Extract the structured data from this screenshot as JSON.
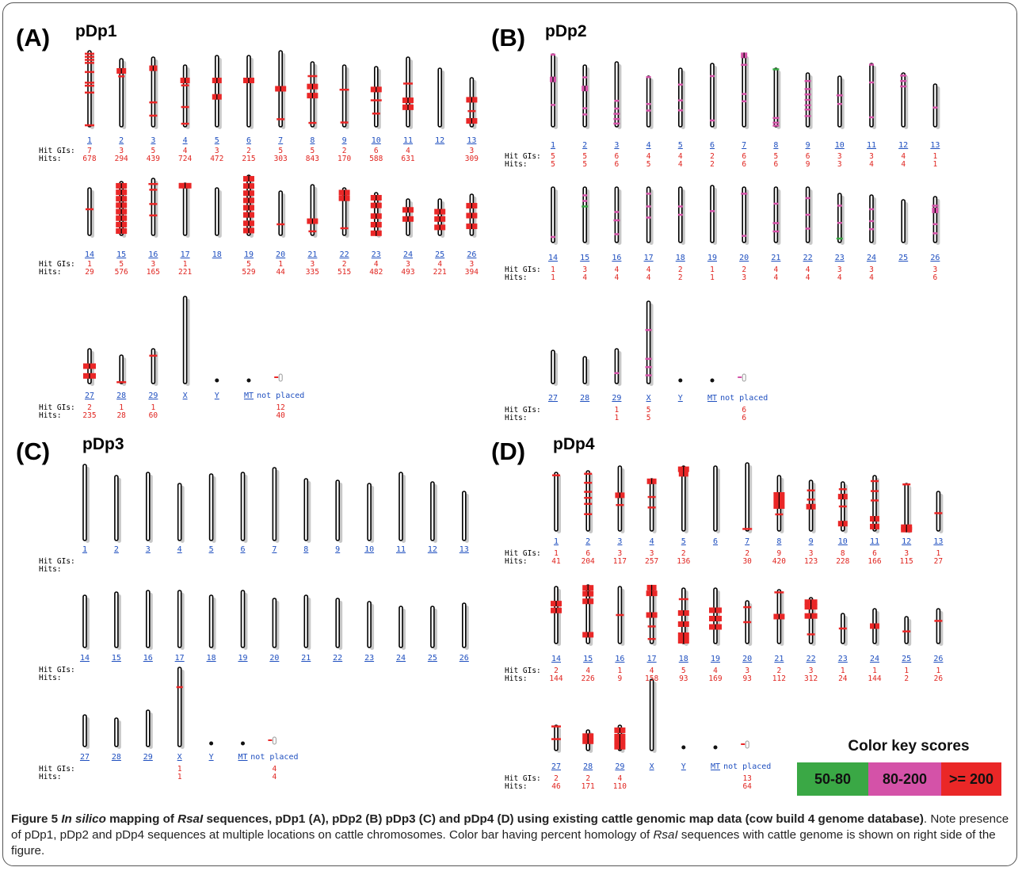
{
  "rows_header": {
    "hit_gis": "Hit GIs:",
    "hits": "Hits:"
  },
  "panels": [
    {
      "label": "(A)",
      "name": "pDp1",
      "mark_color": "#e8211c",
      "rows": [
        {
          "chromosomes": [
            "1",
            "2",
            "3",
            "4",
            "5",
            "6",
            "7",
            "8",
            "9",
            "10",
            "11",
            "12",
            "13"
          ],
          "hit_gis": [
            "7",
            "3",
            "5",
            "4",
            "3",
            "2",
            "5",
            "5",
            "2",
            "6",
            "4",
            "",
            "3"
          ],
          "hits": [
            "678",
            "294",
            "439",
            "724",
            "472",
            "215",
            "303",
            "843",
            "170",
            "588",
            "631",
            "",
            "309"
          ]
        },
        {
          "chromosomes": [
            "14",
            "15",
            "16",
            "17",
            "18",
            "19",
            "20",
            "21",
            "22",
            "23",
            "24",
            "25",
            "26"
          ],
          "hit_gis": [
            "1",
            "5",
            "3",
            "1",
            "",
            "5",
            "1",
            "3",
            "2",
            "4",
            "3",
            "4",
            "3"
          ],
          "hits": [
            "29",
            "576",
            "165",
            "221",
            "",
            "529",
            "44",
            "335",
            "515",
            "482",
            "493",
            "221",
            "394"
          ]
        },
        {
          "chromosomes": [
            "27",
            "28",
            "29",
            "X",
            "Y",
            "MT",
            "not placed"
          ],
          "hit_gis": [
            "2",
            "1",
            "1",
            "",
            "",
            "",
            "12"
          ],
          "hits": [
            "235",
            "28",
            "60",
            "",
            "",
            "",
            "40"
          ]
        }
      ]
    },
    {
      "label": "(B)",
      "name": "pDp2",
      "mark_color": "#c050b8",
      "rows": [
        {
          "chromosomes": [
            "1",
            "2",
            "3",
            "4",
            "5",
            "6",
            "7",
            "8",
            "9",
            "10",
            "11",
            "12",
            "13"
          ],
          "hit_gis": [
            "5",
            "5",
            "6",
            "4",
            "4",
            "2",
            "6",
            "5",
            "6",
            "3",
            "3",
            "4",
            "1"
          ],
          "hits": [
            "5",
            "5",
            "6",
            "5",
            "4",
            "2",
            "6",
            "6",
            "9",
            "3",
            "4",
            "4",
            "1"
          ]
        },
        {
          "chromosomes": [
            "14",
            "15",
            "16",
            "17",
            "18",
            "19",
            "20",
            "21",
            "22",
            "23",
            "24",
            "25",
            "26"
          ],
          "hit_gis": [
            "1",
            "3",
            "4",
            "4",
            "2",
            "1",
            "2",
            "4",
            "4",
            "3",
            "3",
            "",
            "3"
          ],
          "hits": [
            "1",
            "4",
            "4",
            "4",
            "2",
            "1",
            "3",
            "4",
            "4",
            "4",
            "4",
            "",
            "6"
          ]
        },
        {
          "chromosomes": [
            "27",
            "28",
            "29",
            "X",
            "Y",
            "MT",
            "not placed"
          ],
          "hit_gis": [
            "",
            "",
            "1",
            "5",
            "",
            "",
            "6"
          ],
          "hits": [
            "",
            "",
            "1",
            "5",
            "",
            "",
            "6"
          ]
        }
      ]
    },
    {
      "label": "(C)",
      "name": "pDp3",
      "mark_color": "#e8211c",
      "rows": [
        {
          "chromosomes": [
            "1",
            "2",
            "3",
            "4",
            "5",
            "6",
            "7",
            "8",
            "9",
            "10",
            "11",
            "12",
            "13"
          ],
          "hit_gis": [
            "",
            "",
            "",
            "",
            "",
            "",
            "",
            "",
            "",
            "",
            "",
            "",
            ""
          ],
          "hits": [
            "",
            "",
            "",
            "",
            "",
            "",
            "",
            "",
            "",
            "",
            "",
            "",
            ""
          ]
        },
        {
          "chromosomes": [
            "14",
            "15",
            "16",
            "17",
            "18",
            "19",
            "20",
            "21",
            "22",
            "23",
            "24",
            "25",
            "26"
          ],
          "hit_gis": [
            "",
            "",
            "",
            "",
            "",
            "",
            "",
            "",
            "",
            "",
            "",
            "",
            ""
          ],
          "hits": [
            "",
            "",
            "",
            "",
            "",
            "",
            "",
            "",
            "",
            "",
            "",
            "",
            ""
          ]
        },
        {
          "chromosomes": [
            "27",
            "28",
            "29",
            "X",
            "Y",
            "MT",
            "not placed"
          ],
          "hit_gis": [
            "",
            "",
            "",
            "1",
            "",
            "",
            "4"
          ],
          "hits": [
            "",
            "",
            "",
            "1",
            "",
            "",
            "4"
          ]
        }
      ]
    },
    {
      "label": "(D)",
      "name": "pDp4",
      "mark_color": "#e8211c",
      "rows": [
        {
          "chromosomes": [
            "1",
            "2",
            "3",
            "4",
            "5",
            "6",
            "7",
            "8",
            "9",
            "10",
            "11",
            "12",
            "13"
          ],
          "hit_gis": [
            "1",
            "6",
            "3",
            "3",
            "2",
            "",
            "2",
            "9",
            "3",
            "8",
            "6",
            "3",
            "1"
          ],
          "hits": [
            "41",
            "204",
            "117",
            "257",
            "136",
            "",
            "30",
            "420",
            "123",
            "228",
            "166",
            "115",
            "27"
          ]
        },
        {
          "chromosomes": [
            "14",
            "15",
            "16",
            "17",
            "18",
            "19",
            "20",
            "21",
            "22",
            "23",
            "24",
            "25",
            "26"
          ],
          "hit_gis": [
            "2",
            "4",
            "1",
            "4",
            "5",
            "4",
            "3",
            "2",
            "3",
            "1",
            "1",
            "1",
            "1"
          ],
          "hits": [
            "144",
            "226",
            "9",
            "158",
            "93",
            "169",
            "93",
            "112",
            "312",
            "24",
            "144",
            "2",
            "26"
          ]
        },
        {
          "chromosomes": [
            "27",
            "28",
            "29",
            "X",
            "Y",
            "MT",
            "not placed"
          ],
          "hit_gis": [
            "2",
            "2",
            "4",
            "",
            "",
            "",
            "13"
          ],
          "hits": [
            "46",
            "171",
            "110",
            "",
            "",
            "",
            "64"
          ]
        }
      ]
    }
  ],
  "color_key": {
    "title": "Color  key scores",
    "items": [
      {
        "label": "50-80",
        "color": "#3aa845"
      },
      {
        "label": "80-200",
        "color": "#d452a8"
      },
      {
        "label": ">= 200",
        "color": "#ea2727"
      }
    ]
  },
  "caption": {
    "figure": "Figure 5",
    "prefix_italic": "In silico",
    "mid1": " mapping of ",
    "rsai1": "RsaI",
    "mid2": " sequences, pDp1 (A), pDp2 (B) pDp3 (C) and pDp4 (D) using existing cattle genomic map data (cow build 4 genome database)",
    "rest": ". Note presence of pDp1, pDp2 and pDp4 sequences at multiple locations on cattle chromosomes. Color bar having percent homology of ",
    "rsai2": "RsaI",
    "end": " sequences with cattle genome is shown on right side of the figure."
  }
}
